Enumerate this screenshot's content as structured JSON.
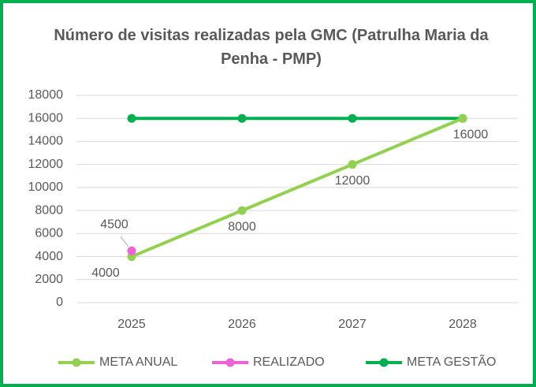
{
  "chart_data": {
    "type": "line",
    "title": "Número de visitas realizadas pela GMC (Patrulha Maria da Penha - PMP)",
    "categories": [
      "2025",
      "2026",
      "2027",
      "2028"
    ],
    "series": [
      {
        "name": "META ANUAL",
        "color": "#92d050",
        "values": [
          4000,
          8000,
          12000,
          16000
        ],
        "data_labels": true,
        "label_position": "below"
      },
      {
        "name": "REALIZADO",
        "color": "#f060d8",
        "values": [
          4500,
          null,
          null,
          null
        ],
        "data_labels": true,
        "label_position": "above"
      },
      {
        "name": "META GESTÃO",
        "color": "#00b050",
        "values": [
          16000,
          16000,
          16000,
          16000
        ],
        "data_labels": false,
        "label_position": "below"
      }
    ],
    "ylim": [
      0,
      18000
    ],
    "yticks": [
      0,
      2000,
      4000,
      6000,
      8000,
      10000,
      12000,
      14000,
      16000,
      18000
    ],
    "grid": true,
    "legend": "bottom"
  }
}
